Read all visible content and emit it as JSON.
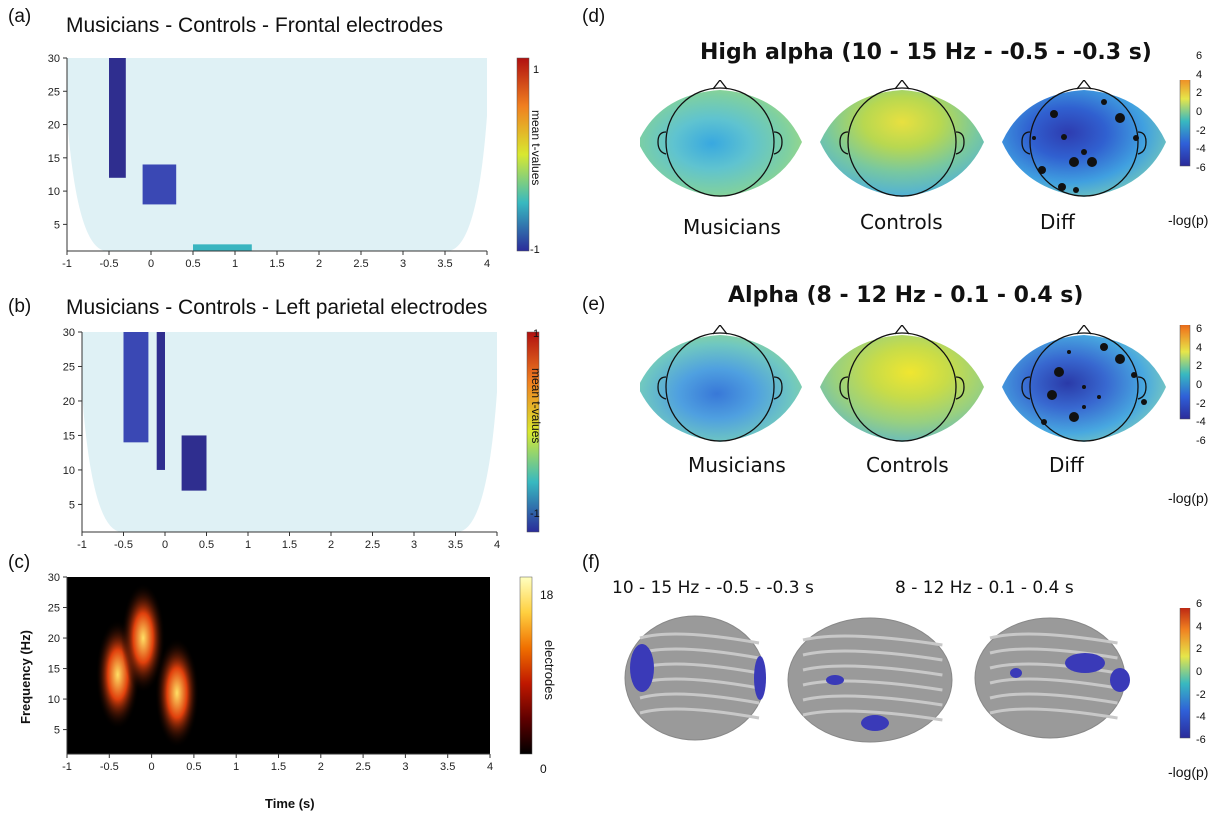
{
  "panels": {
    "a": {
      "label": "(a)",
      "title": "Musicians - Controls - Frontal electrodes",
      "cbar_label": "mean t-values",
      "cbar_ticks": [
        "1",
        "-1"
      ]
    },
    "b": {
      "label": "(b)",
      "title": "Musicians - Controls - Left parietal electrodes",
      "cbar_label": "mean t-values",
      "cbar_ticks": [
        "1",
        "-1"
      ]
    },
    "c": {
      "label": "(c)",
      "xlabel": "Time (s)",
      "ylabel": "Frequency (Hz)",
      "cbar_label": "electrodes",
      "cbar_ticks": [
        "18",
        "0"
      ]
    },
    "d": {
      "label": "(d)",
      "title": "High alpha (10 - 15 Hz   -   -0.5 - -0.3 s)",
      "head_labels": [
        "Musicians",
        "Controls",
        "Diff"
      ],
      "cbar_label": "-log(p)",
      "cbar_ticks": [
        "6",
        "4",
        "2",
        "0",
        "-2",
        "-4",
        "-6"
      ]
    },
    "e": {
      "label": "(e)",
      "title": "Alpha (8 - 12 Hz   -   0.1 - 0.4 s)",
      "head_labels": [
        "Musicians",
        "Controls",
        "Diff"
      ],
      "cbar_label": "-log(p)",
      "cbar_ticks": [
        "6",
        "4",
        "2",
        "0",
        "-2",
        "-4",
        "-6"
      ]
    },
    "f": {
      "label": "(f)",
      "subtitle_left": "10 - 15 Hz - -0.5 - -0.3 s",
      "subtitle_right": "8 - 12 Hz - 0.1 - 0.4 s",
      "cbar_label": "-log(p)",
      "cbar_ticks": [
        "6",
        "4",
        "2",
        "0",
        "-2",
        "-4",
        "-6"
      ]
    }
  },
  "colors": {
    "parula_low": "#352a87",
    "parula_mid": "#38b9c0",
    "parula_high": "#f9fb0e",
    "jet_low": "#2b2b9a",
    "jet_high": "#b01010",
    "hot_low": "#000000",
    "hot_high": "#ffffc0",
    "brain": "#9a9a9a",
    "brain_cluster": "#3a3ab8"
  },
  "chart_data": [
    {
      "type": "heatmap",
      "title": "Musicians - Controls - Frontal electrodes",
      "x": [
        -1,
        -0.5,
        0,
        0.5,
        1,
        1.5,
        2,
        2.5,
        3,
        3.5,
        4
      ],
      "y": [
        5,
        10,
        15,
        20,
        25,
        30
      ],
      "xlim": [
        -1,
        4
      ],
      "ylim": [
        1,
        30
      ],
      "zlim": [
        -1,
        1
      ],
      "colorbar": "mean t-values",
      "clusters": [
        {
          "x": [
            -0.5,
            -0.3
          ],
          "y": [
            12,
            30
          ],
          "value": -1
        },
        {
          "x": [
            -0.1,
            0.3
          ],
          "y": [
            8,
            14
          ],
          "value": -0.7
        },
        {
          "x": [
            0.5,
            1.2
          ],
          "y": [
            1,
            2
          ],
          "value": -0.3
        }
      ]
    },
    {
      "type": "heatmap",
      "title": "Musicians - Controls - Left parietal electrodes",
      "x": [
        -1,
        -0.5,
        0,
        0.5,
        1,
        1.5,
        2,
        2.5,
        3,
        3.5,
        4
      ],
      "y": [
        5,
        10,
        15,
        20,
        25,
        30
      ],
      "xlim": [
        -1,
        4
      ],
      "ylim": [
        1,
        30
      ],
      "zlim": [
        -1,
        1
      ],
      "colorbar": "mean t-values",
      "clusters": [
        {
          "x": [
            -0.5,
            -0.2
          ],
          "y": [
            14,
            30
          ],
          "value": -0.8
        },
        {
          "x": [
            -0.1,
            0.0
          ],
          "y": [
            10,
            30
          ],
          "value": -1
        },
        {
          "x": [
            0.2,
            0.5
          ],
          "y": [
            7,
            15
          ],
          "value": -0.9
        }
      ]
    },
    {
      "type": "heatmap",
      "xlabel": "Time (s)",
      "ylabel": "Frequency (Hz)",
      "x": [
        -1,
        -0.5,
        0,
        0.5,
        1,
        1.5,
        2,
        2.5,
        3,
        3.5,
        4
      ],
      "y": [
        5,
        10,
        15,
        20,
        25,
        30
      ],
      "xlim": [
        -1,
        4
      ],
      "ylim": [
        1,
        30
      ],
      "zlim": [
        0,
        18
      ],
      "colorbar": "electrodes",
      "peaks": [
        {
          "x": -0.4,
          "y": 14,
          "value": 18
        },
        {
          "x": 0.3,
          "y": 11,
          "value": 17
        },
        {
          "x": -0.1,
          "y": 20,
          "value": 10
        }
      ]
    }
  ]
}
